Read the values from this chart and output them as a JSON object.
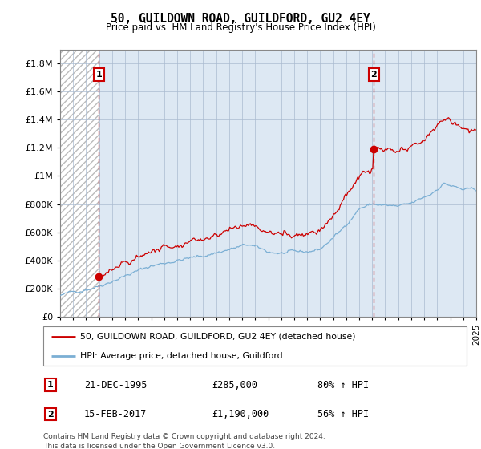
{
  "title": "50, GUILDOWN ROAD, GUILDFORD, GU2 4EY",
  "subtitle": "Price paid vs. HM Land Registry's House Price Index (HPI)",
  "x_start_year": 1993,
  "x_end_year": 2025,
  "ylim": [
    0,
    1900000
  ],
  "yticks": [
    0,
    200000,
    400000,
    600000,
    800000,
    1000000,
    1200000,
    1400000,
    1600000,
    1800000
  ],
  "ytick_labels": [
    "£0",
    "£200K",
    "£400K",
    "£600K",
    "£800K",
    "£1M",
    "£1.2M",
    "£1.4M",
    "£1.6M",
    "£1.8M"
  ],
  "sale1_year": 1995.97,
  "sale1_price": 285000,
  "sale2_year": 2017.12,
  "sale2_price": 1190000,
  "sale1_date": "21-DEC-1995",
  "sale1_hpi_text": "80% ↑ HPI",
  "sale2_date": "15-FEB-2017",
  "sale2_hpi_text": "56% ↑ HPI",
  "sale1_price_text": "£285,000",
  "sale2_price_text": "£1,190,000",
  "hpi_line_color": "#7bafd4",
  "price_line_color": "#cc0000",
  "marker_color": "#cc0000",
  "vline_color": "#cc0000",
  "bg_hatch_color": "#bbbbbb",
  "bg_plot_color": "#dde8f3",
  "grid_color": "#aabbd0",
  "legend_label_price": "50, GUILDOWN ROAD, GUILDFORD, GU2 4EY (detached house)",
  "legend_label_hpi": "HPI: Average price, detached house, Guildford",
  "footer": "Contains HM Land Registry data © Crown copyright and database right 2024.\nThis data is licensed under the Open Government Licence v3.0.",
  "xtick_years": [
    1993,
    1994,
    1995,
    1996,
    1997,
    1998,
    1999,
    2000,
    2001,
    2002,
    2003,
    2004,
    2005,
    2006,
    2007,
    2008,
    2009,
    2010,
    2011,
    2012,
    2013,
    2014,
    2015,
    2016,
    2017,
    2018,
    2019,
    2020,
    2021,
    2022,
    2023,
    2024,
    2025
  ]
}
